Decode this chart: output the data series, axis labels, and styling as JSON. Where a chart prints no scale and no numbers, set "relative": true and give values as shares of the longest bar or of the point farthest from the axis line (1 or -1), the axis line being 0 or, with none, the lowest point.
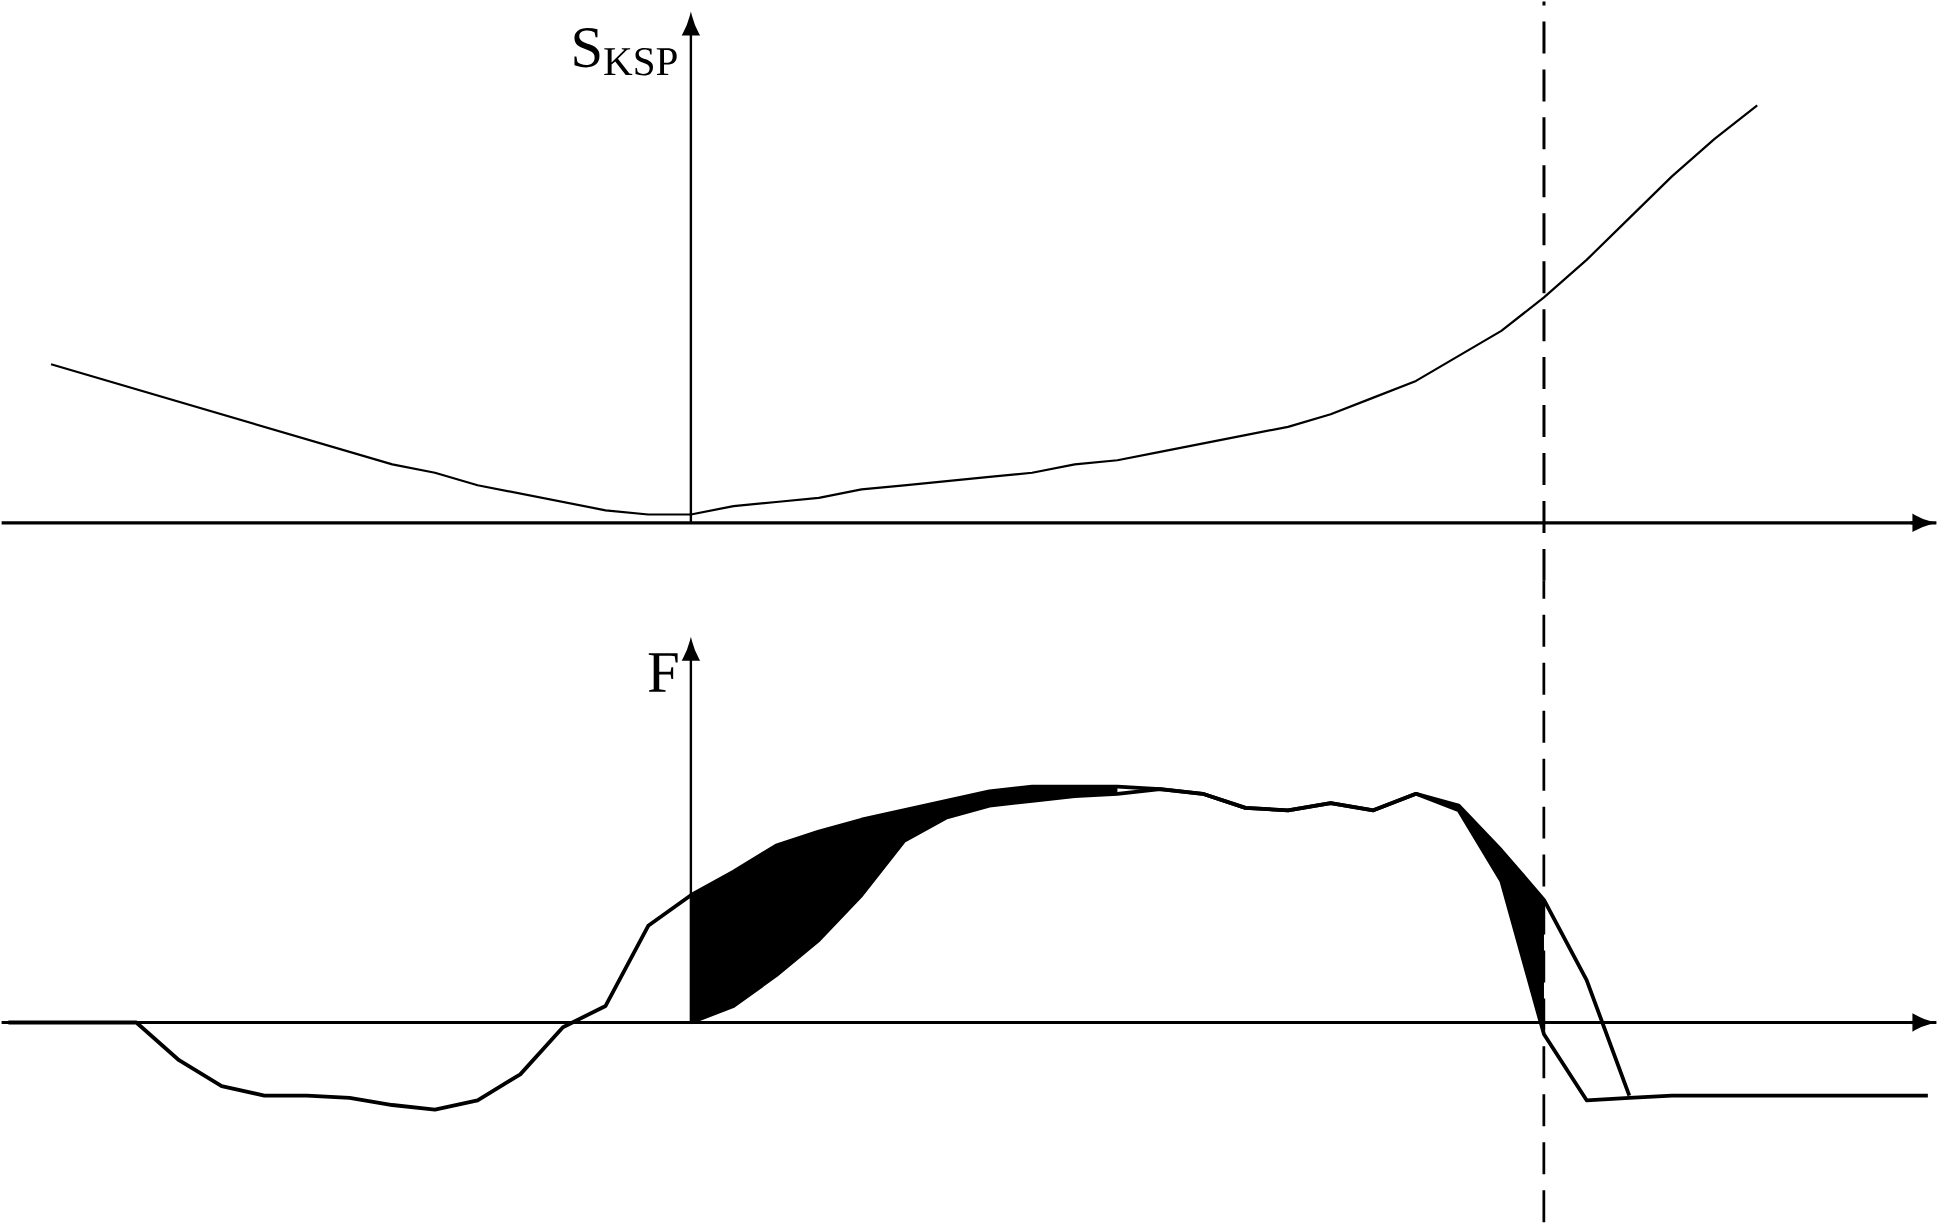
{
  "chart_data": [
    {
      "type": "line",
      "ylabel": "S$_{KSP}$",
      "relative": true,
      "marker": "none",
      "line_style": "solid",
      "categories": [
        null,
        null,
        null,
        null,
        null,
        null,
        null,
        null,
        null,
        null,
        null,
        null,
        null,
        null,
        null,
        null,
        null,
        null,
        null,
        null,
        null,
        null,
        null,
        null,
        null,
        null,
        null,
        null,
        null,
        null,
        null,
        null,
        null,
        null,
        null,
        null,
        null,
        null,
        null,
        null,
        null,
        null,
        null,
        null,
        null,
        null
      ],
      "series": [
        {
          "color": "#000000",
          "values": [
            null,
            0.38,
            0.35,
            0.32,
            0.29,
            0.26,
            0.23,
            0.2,
            0.17,
            0.14,
            0.12,
            0.09,
            0.07,
            0.05,
            0.03,
            0.02,
            0.02,
            0.04,
            0.05,
            0.06,
            0.08,
            0.09,
            0.1,
            0.11,
            0.12,
            0.14,
            0.15,
            0.17,
            0.19,
            0.21,
            0.23,
            0.26,
            0.3,
            0.34,
            0.4,
            0.46,
            0.54,
            0.63,
            0.73,
            0.83,
            0.92,
            1,
            null,
            null,
            null,
            null
          ]
        }
      ]
    },
    {
      "type": "line",
      "ylabel": "F",
      "relative": true,
      "marker": "none",
      "line_style": "solid",
      "categories": [
        null,
        null,
        null,
        null,
        null,
        null,
        null,
        null,
        null,
        null,
        null,
        null,
        null,
        null,
        null,
        null,
        null,
        null,
        null,
        null,
        null,
        null,
        null,
        null,
        null,
        null,
        null,
        null,
        null,
        null,
        null,
        null,
        null,
        null,
        null,
        null,
        null,
        null,
        null,
        null,
        null,
        null,
        null,
        null,
        null,
        null
      ],
      "series": [
        {
          "color": "#000000",
          "values": [
            0,
            0,
            0,
            0,
            -0.16,
            -0.27,
            -0.31,
            -0.31,
            -0.32,
            -0.35,
            -0.37,
            -0.33,
            -0.22,
            -0.02,
            0.07,
            0.41,
            0.54,
            0.64,
            0.75,
            0.81,
            0.86,
            0.9,
            0.94,
            0.98,
            1,
            1,
            1,
            0.99,
            0.97,
            0.91,
            0.9,
            0.93,
            0.9,
            0.97,
            0.9,
            0.6,
            -0.05,
            -0.33,
            -0.32,
            -0.31,
            -0.31,
            -0.31,
            -0.31,
            -0.31,
            -0.31,
            -0.31
          ],
          "lower": [
            null,
            null,
            null,
            null,
            null,
            null,
            null,
            null,
            null,
            null,
            null,
            null,
            null,
            null,
            null,
            null,
            0,
            0.07,
            0.2,
            0.35,
            0.54,
            0.77,
            0.87,
            0.92,
            0.94,
            0.96,
            0.97,
            null,
            null,
            null,
            null,
            null,
            null,
            0.97,
            0.9,
            0.6,
            -0.05,
            null,
            null,
            null,
            null,
            null,
            null,
            null,
            null,
            null
          ],
          "upper": [
            null,
            null,
            null,
            null,
            null,
            null,
            null,
            null,
            null,
            null,
            null,
            null,
            null,
            null,
            null,
            null,
            0.54,
            0.64,
            0.75,
            0.81,
            0.86,
            0.9,
            0.94,
            0.98,
            1,
            1,
            1,
            null,
            null,
            null,
            null,
            null,
            null,
            0.97,
            0.92,
            0.73,
            0.52,
            null,
            null,
            null,
            null,
            null,
            null,
            null,
            null,
            null
          ]
        },
        {
          "color": "#000000",
          "values": [
            null,
            null,
            null,
            null,
            null,
            null,
            null,
            null,
            null,
            null,
            null,
            null,
            null,
            null,
            null,
            null,
            0,
            0.07,
            0.2,
            0.35,
            0.54,
            0.77,
            0.87,
            0.92,
            0.94,
            0.96,
            0.97,
            0.99,
            0.97,
            0.91,
            0.9,
            0.93,
            0.9,
            0.97,
            0.92,
            0.73,
            0.52,
            0.18,
            -0.31,
            null,
            null,
            null,
            null,
            null,
            null,
            null
          ]
        }
      ]
    }
  ]
}
